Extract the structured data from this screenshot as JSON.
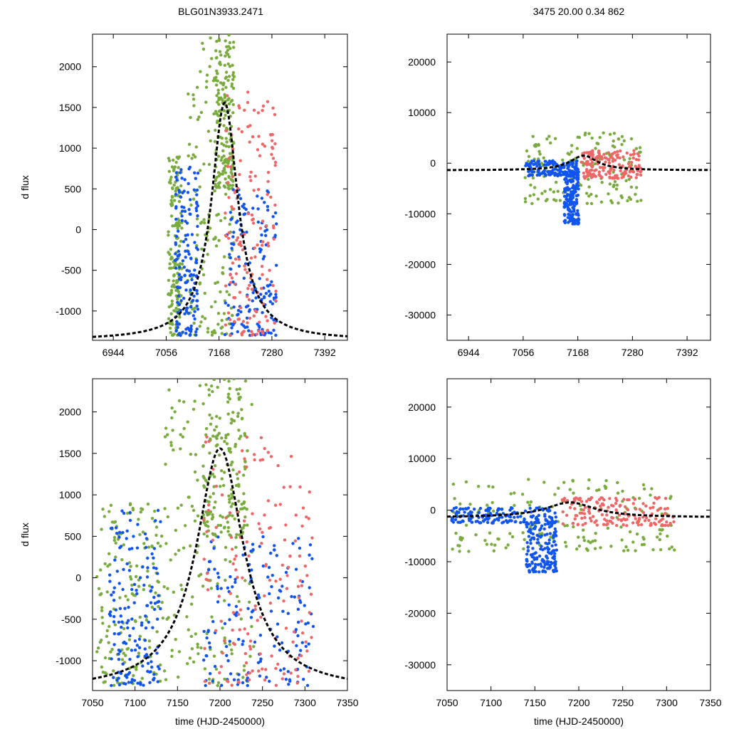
{
  "title_left": "BLG01N3933.2471",
  "title_right": "3475  20.00   0.34   862",
  "colors": {
    "green": "#7aab3e",
    "blue": "#1155ee",
    "red": "#ee6666",
    "model": "#000000"
  },
  "chart_data": [
    {
      "type": "scatter",
      "panel": "top-left",
      "xlabel": "",
      "ylabel": "d flux",
      "xlim": [
        6900,
        7440
      ],
      "ylim": [
        -1360,
        2400
      ],
      "xticks": [
        6944,
        7056,
        7168,
        7280,
        7392
      ],
      "yticks": [
        -1000,
        -500,
        0,
        500,
        1000,
        1500,
        2000
      ],
      "model": {
        "t0": 7180,
        "peak": 1560,
        "base": -1360,
        "width": 34
      },
      "series": [
        {
          "name": "green",
          "ranges": [
            [
              7060,
              7090,
              -1300,
              900
            ],
            [
              7100,
              7200,
              -1300,
              2400
            ],
            [
              7160,
              7200,
              500,
              2400
            ]
          ]
        },
        {
          "name": "blue",
          "ranges": [
            [
              7075,
              7125,
              -1300,
              850
            ],
            [
              7180,
              7290,
              -1300,
              500
            ]
          ]
        },
        {
          "name": "red",
          "ranges": [
            [
              7180,
              7290,
              -1300,
              1700
            ]
          ]
        }
      ]
    },
    {
      "type": "scatter",
      "panel": "top-right",
      "xlabel": "",
      "ylabel": "",
      "xlim": [
        6900,
        7440
      ],
      "ylim": [
        -35000,
        25500
      ],
      "xticks": [
        6944,
        7056,
        7168,
        7280,
        7392
      ],
      "yticks": [
        -30000,
        -20000,
        -10000,
        0,
        10000,
        20000
      ],
      "model": {
        "t0": 7180,
        "peak": 1500,
        "base": -1400,
        "width": 34
      },
      "series": [
        {
          "name": "green",
          "ranges": [
            [
              7060,
              7300,
              -8000,
              6000
            ]
          ]
        },
        {
          "name": "blue",
          "ranges": [
            [
              7060,
              7170,
              -2500,
              500
            ],
            [
              7140,
              7170,
              -12000,
              -2000
            ]
          ]
        },
        {
          "name": "red",
          "ranges": [
            [
              7175,
              7300,
              -3000,
              2500
            ]
          ]
        }
      ]
    },
    {
      "type": "scatter",
      "panel": "bottom-left",
      "xlabel": "time (HJD-2450000)",
      "ylabel": "d flux",
      "xlim": [
        7050,
        7350
      ],
      "ylim": [
        -1360,
        2400
      ],
      "xticks": [
        7050,
        7100,
        7150,
        7200,
        7250,
        7300,
        7350
      ],
      "yticks": [
        -1000,
        -500,
        0,
        500,
        1000,
        1500,
        2000
      ],
      "model": {
        "t0": 7200,
        "peak": 1560,
        "base": -1360,
        "width": 34
      },
      "series": [
        {
          "name": "green",
          "ranges": [
            [
              7055,
              7130,
              -1300,
              900
            ],
            [
              7130,
              7240,
              -1300,
              2400
            ],
            [
              7180,
              7230,
              500,
              2400
            ]
          ]
        },
        {
          "name": "blue",
          "ranges": [
            [
              7070,
              7130,
              -1300,
              850
            ],
            [
              7180,
              7310,
              -1300,
              500
            ]
          ]
        },
        {
          "name": "red",
          "ranges": [
            [
              7180,
              7310,
              -1300,
              1700
            ]
          ]
        }
      ]
    },
    {
      "type": "scatter",
      "panel": "bottom-right",
      "xlabel": "time (HJD-2450000)",
      "ylabel": "",
      "xlim": [
        7050,
        7350
      ],
      "ylim": [
        -35000,
        25500
      ],
      "xticks": [
        7050,
        7100,
        7150,
        7200,
        7250,
        7300,
        7350
      ],
      "yticks": [
        -30000,
        -20000,
        -10000,
        0,
        10000,
        20000
      ],
      "model": {
        "t0": 7190,
        "peak": 1500,
        "base": -1400,
        "width": 34
      },
      "series": [
        {
          "name": "green",
          "ranges": [
            [
              7055,
              7310,
              -8000,
              6000
            ]
          ]
        },
        {
          "name": "blue",
          "ranges": [
            [
              7055,
              7175,
              -2500,
              500
            ],
            [
              7140,
              7175,
              -12000,
              -2000
            ]
          ]
        },
        {
          "name": "red",
          "ranges": [
            [
              7180,
              7310,
              -3000,
              2500
            ]
          ]
        }
      ]
    }
  ]
}
